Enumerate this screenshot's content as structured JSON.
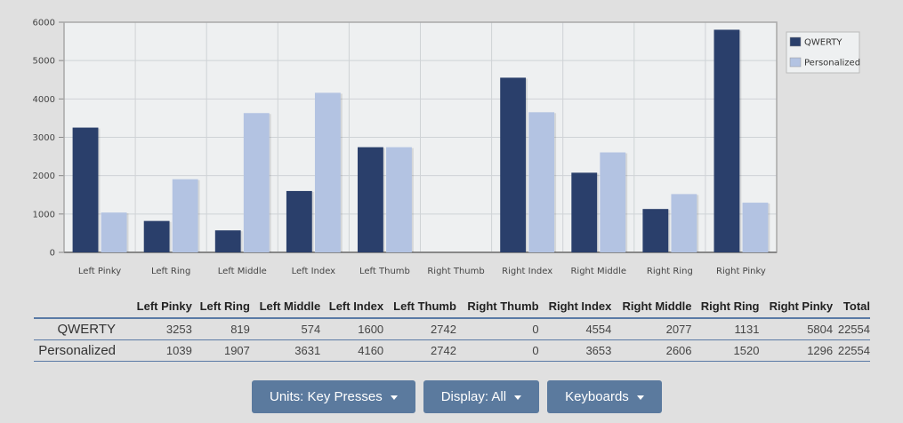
{
  "chart_data": {
    "type": "bar",
    "categories": [
      "Left Pinky",
      "Left Ring",
      "Left Middle",
      "Left Index",
      "Left Thumb",
      "Right Thumb",
      "Right Index",
      "Right Middle",
      "Right Ring",
      "Right Pinky"
    ],
    "series": [
      {
        "name": "QWERTY",
        "values": [
          3253,
          819,
          574,
          1600,
          2742,
          0,
          4554,
          2077,
          1131,
          5804
        ],
        "color": "#2a3f6b"
      },
      {
        "name": "Personalized",
        "values": [
          1039,
          1907,
          3631,
          4160,
          2742,
          0,
          3653,
          2606,
          1520,
          1296
        ],
        "color": "#b3c3e2"
      }
    ],
    "ylim": [
      0,
      6000
    ],
    "yticks": [
      0,
      1000,
      2000,
      3000,
      4000,
      5000,
      6000
    ],
    "grid": true,
    "legend_position": "top-right",
    "title": "",
    "xlabel": "",
    "ylabel": ""
  },
  "table": {
    "headers": [
      "",
      "Left Pinky",
      "Left Ring",
      "Left Middle",
      "Left Index",
      "Left Thumb",
      "Right Thumb",
      "Right Index",
      "Right Middle",
      "Right Ring",
      "Right Pinky",
      "Total"
    ],
    "rows": [
      {
        "label": "QWERTY",
        "cells": [
          "3253",
          "819",
          "574",
          "1600",
          "2742",
          "0",
          "4554",
          "2077",
          "1131",
          "5804",
          "22554"
        ]
      },
      {
        "label": "Personalized",
        "cells": [
          "1039",
          "1907",
          "3631",
          "4160",
          "2742",
          "0",
          "3653",
          "2606",
          "1520",
          "1296",
          "22554"
        ]
      }
    ]
  },
  "toolbar": {
    "units_label": "Units: Key Presses",
    "display_label": "Display: All",
    "keyboards_label": "Keyboards"
  },
  "colors": {
    "plot_background": "#eef0f1",
    "page_background": "#e0e0e0",
    "button": "#5b7a9e",
    "table_rule": "#5a7aa5"
  }
}
